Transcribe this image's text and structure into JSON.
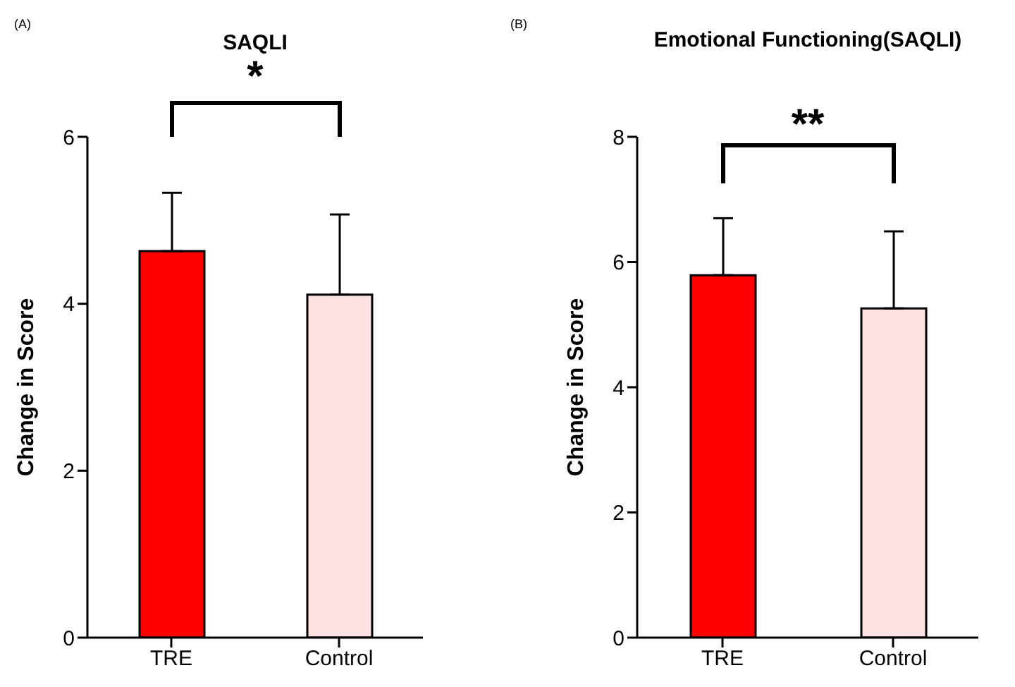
{
  "chart_data": [
    {
      "type": "bar",
      "title": "SAQLI",
      "ylabel": "Change in Score",
      "categories": [
        "TRE",
        "Control"
      ],
      "values": [
        4.63,
        4.11
      ],
      "errors": [
        0.7,
        0.96
      ],
      "colors": [
        "#ff0000",
        "#fde0e0"
      ],
      "ylim": [
        0,
        6
      ],
      "yticks": [
        0,
        2,
        4,
        6
      ],
      "grid": false,
      "annotations": [
        "(A)",
        "*"
      ]
    },
    {
      "type": "bar",
      "title": "Emotional Functioning(SAQLI)",
      "ylabel": "Change in Score",
      "categories": [
        "TRE",
        "Control"
      ],
      "values": [
        5.79,
        5.26
      ],
      "errors": [
        0.91,
        1.23
      ],
      "colors": [
        "#ff0000",
        "#fde0e0"
      ],
      "ylim": [
        0,
        8
      ],
      "yticks": [
        0,
        2,
        4,
        6,
        8
      ],
      "grid": false,
      "annotations": [
        "(B)",
        "**"
      ]
    }
  ]
}
